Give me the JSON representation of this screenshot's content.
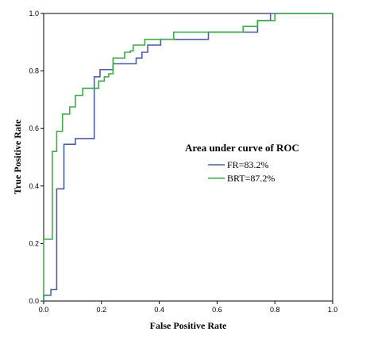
{
  "chart_data": {
    "type": "line",
    "xlabel": "False Positive Rate",
    "ylabel": "True Positive Rate",
    "xlim": [
      0,
      1
    ],
    "ylim": [
      0,
      1
    ],
    "x_ticks": [
      "0.0",
      "0.2",
      "0.4",
      "0.6",
      "0.8",
      "1.0"
    ],
    "y_ticks": [
      "0.0",
      "0.2",
      "0.4",
      "0.6",
      "0.8",
      "1.0"
    ],
    "grid": false,
    "legend": {
      "title": "Area under curve of ROC",
      "placement": "center-right"
    },
    "series": [
      {
        "name": "FR=83.2%",
        "color": "#4a5fa8",
        "x": [
          0,
          0,
          0.025,
          0.025,
          0.045,
          0.045,
          0.07,
          0.07,
          0.11,
          0.11,
          0.175,
          0.175,
          0.195,
          0.195,
          0.24,
          0.24,
          0.32,
          0.32,
          0.34,
          0.34,
          0.36,
          0.36,
          0.405,
          0.405,
          0.57,
          0.57,
          0.74,
          0.74,
          0.785,
          0.785,
          1
        ],
        "y": [
          0,
          0.02,
          0.02,
          0.04,
          0.04,
          0.39,
          0.39,
          0.545,
          0.545,
          0.565,
          0.565,
          0.78,
          0.78,
          0.805,
          0.805,
          0.825,
          0.825,
          0.845,
          0.845,
          0.865,
          0.865,
          0.89,
          0.89,
          0.91,
          0.91,
          0.935,
          0.935,
          0.975,
          0.975,
          1,
          1
        ]
      },
      {
        "name": "BRT=87.2%",
        "color": "#3fae49",
        "x": [
          0,
          0,
          0.03,
          0.03,
          0.045,
          0.045,
          0.065,
          0.065,
          0.09,
          0.09,
          0.11,
          0.11,
          0.135,
          0.135,
          0.19,
          0.19,
          0.21,
          0.21,
          0.225,
          0.225,
          0.24,
          0.24,
          0.28,
          0.28,
          0.3,
          0.3,
          0.31,
          0.31,
          0.35,
          0.35,
          0.45,
          0.45,
          0.69,
          0.69,
          0.74,
          0.74,
          0.8,
          0.8,
          1
        ],
        "y": [
          0,
          0.215,
          0.215,
          0.52,
          0.52,
          0.59,
          0.59,
          0.65,
          0.65,
          0.675,
          0.675,
          0.715,
          0.715,
          0.74,
          0.74,
          0.765,
          0.765,
          0.78,
          0.78,
          0.79,
          0.79,
          0.845,
          0.845,
          0.865,
          0.865,
          0.87,
          0.87,
          0.89,
          0.89,
          0.91,
          0.91,
          0.935,
          0.935,
          0.955,
          0.955,
          0.975,
          0.975,
          1,
          1
        ]
      }
    ]
  }
}
